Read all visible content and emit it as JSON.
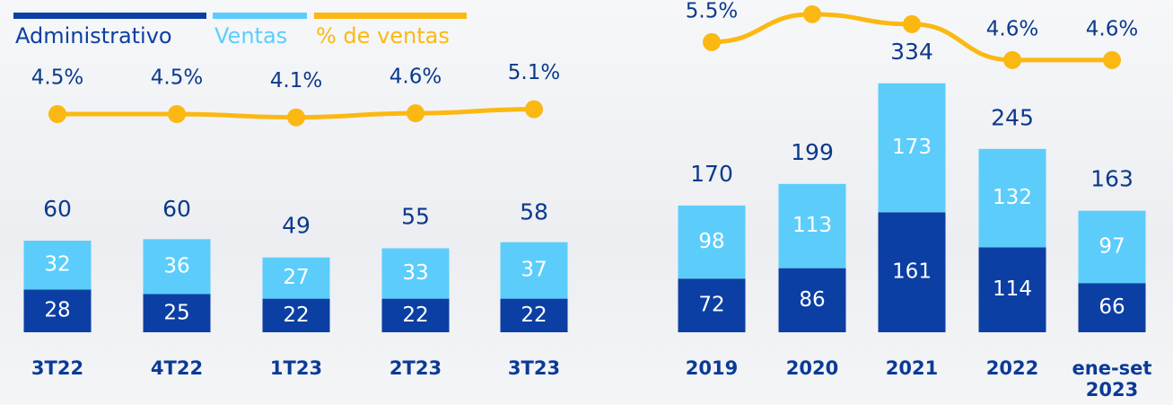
{
  "chart_data": [
    {
      "type": "bar",
      "stacked": true,
      "categories": [
        "3T22",
        "4T22",
        "1T23",
        "2T23",
        "3T23"
      ],
      "series": [
        {
          "name": "Administrativo",
          "color": "#0c3fa3",
          "values": [
            28,
            25,
            22,
            22,
            22
          ]
        },
        {
          "name": "Ventas",
          "color": "#5ccdfa",
          "values": [
            32,
            36,
            27,
            33,
            37
          ]
        },
        {
          "name": "% de ventas",
          "color": "#fbb812",
          "type": "line",
          "axis": "y2",
          "values": [
            4.5,
            4.5,
            4.1,
            4.6,
            5.1
          ],
          "value_labels": [
            "4.5%",
            "4.5%",
            "4.1%",
            "4.6%",
            "5.1%"
          ]
        }
      ],
      "totals": [
        60,
        60,
        49,
        55,
        58
      ]
    },
    {
      "type": "bar",
      "stacked": true,
      "categories": [
        "2019",
        "2020",
        "2021",
        "2022",
        "ene-set 2023"
      ],
      "series": [
        {
          "color": "#0c3fa3",
          "values": [
            72,
            86,
            161,
            114,
            66
          ]
        },
        {
          "color": "#5ccdfa",
          "values": [
            98,
            113,
            173,
            132,
            97
          ]
        },
        {
          "color": "#fbb812",
          "type": "line",
          "axis": "y2",
          "values": [
            5.5,
            6.9,
            6.4,
            4.6,
            4.6
          ],
          "value_labels": [
            "5.5%",
            null,
            null,
            "4.6%",
            "4.6%"
          ]
        }
      ],
      "totals": [
        170,
        199,
        334,
        245,
        163
      ]
    }
  ]
}
